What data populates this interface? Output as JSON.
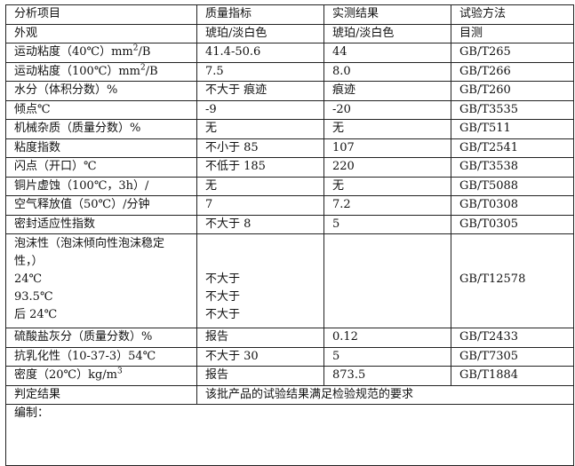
{
  "headers": [
    "分析项目",
    "质量指标",
    "实测结果",
    "试验方法"
  ],
  "rows": [
    {
      "item": "外观",
      "spec": "琥珀/淡白色",
      "result": "琥珀/淡白色",
      "method": "目测"
    },
    {
      "item": "运动粘度（40℃）mm",
      "item_sup": "2",
      "item_suffix": "/B",
      "spec": "41.4-50.6",
      "result": "44",
      "method": "GB/T265"
    },
    {
      "item": "运动粘度（100℃）mm",
      "item_sup": "2",
      "item_suffix": "/B",
      "spec": "7.5",
      "result": "8.0",
      "method": "GB/T266"
    },
    {
      "item": "水分（体积分数）%",
      "spec": "不大于 痕迹",
      "result": "痕迹",
      "method": "GB/T260"
    },
    {
      "item": "倾点℃",
      "spec": "-9",
      "result": "-20",
      "method": "GB/T3535"
    },
    {
      "item": "机械杂质（质量分数）%",
      "spec": "无",
      "result": "无",
      "method": "GB/T511"
    },
    {
      "item": "粘度指数",
      "spec": "不小于 85",
      "result": "107",
      "method": "GB/T2541"
    },
    {
      "item": "闪点（开口）℃",
      "spec": "不低于 185",
      "result": "220",
      "method": "GB/T3538"
    },
    {
      "item": "铜片虚蚀（100℃，3h）/",
      "spec": "无",
      "result": "无",
      "method": "GB/T5088"
    },
    {
      "item": "空气释放值（50℃）/分钟",
      "spec": "7",
      "result": "7.2",
      "method": "GB/T0308"
    },
    {
      "item": "密封适应性指数",
      "spec": "不大于 8",
      "result": "5",
      "method": "GB/T0305"
    }
  ],
  "foam": {
    "item_lines": [
      "泡沫性（泡沫倾向性泡沫稳定",
      "性，）",
      "24℃",
      "93.5℃",
      "后 24℃"
    ],
    "spec_lines": [
      "不大于",
      "不大于",
      "不大于"
    ],
    "method": "GB/T12578"
  },
  "rows2": [
    {
      "item": "硫酸盐灰分（质量分数）%",
      "spec": "报告",
      "result": "0.12",
      "method": "GB/T2433"
    },
    {
      "item": "抗乳化性（10-37-3）54℃",
      "spec": "不大于 30",
      "result": "5",
      "method": "GB/T7305"
    },
    {
      "item": "密度（20℃）kg/m",
      "item_sup": "3",
      "item_suffix": "",
      "spec": "报告",
      "result": "873.5",
      "method": "GB/T1884"
    }
  ],
  "verdict": {
    "label": "判定结果",
    "text": "该批产品的试验结果满足检验规范的要求"
  },
  "compiled": {
    "label": "编制："
  }
}
